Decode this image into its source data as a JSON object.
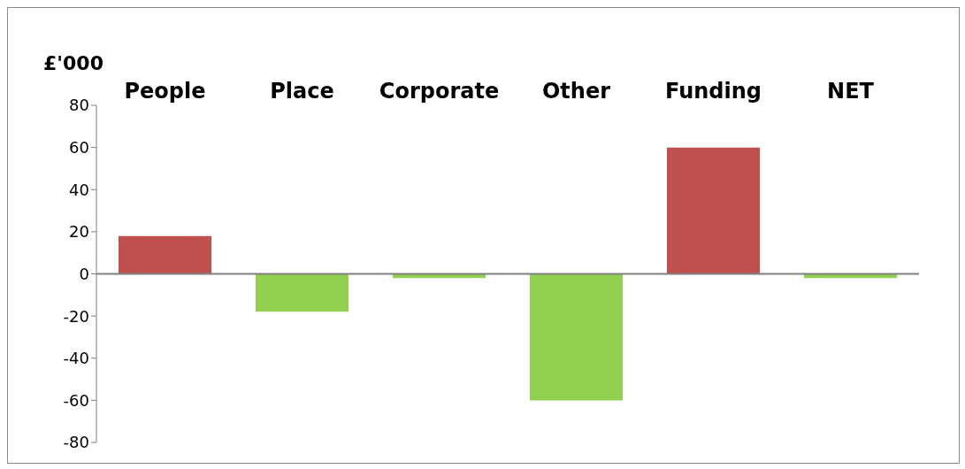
{
  "chart_data": {
    "type": "bar",
    "ylabel": "£'000",
    "categories": [
      "People",
      "Place",
      "Corporate",
      "Other",
      "Funding",
      "NET"
    ],
    "values": [
      18,
      -18,
      -2,
      -60,
      60,
      -2
    ],
    "colors": [
      "#c0504d",
      "#92d050",
      "#92d050",
      "#92d050",
      "#c0504d",
      "#92d050"
    ],
    "ylim": [
      -80,
      80
    ],
    "yticks": [
      -80,
      -60,
      -40,
      -20,
      0,
      20,
      40,
      60,
      80
    ],
    "grid": false,
    "ref_lines": [
      {
        "axis": "y",
        "value": 0,
        "color": "#808080"
      }
    ]
  }
}
